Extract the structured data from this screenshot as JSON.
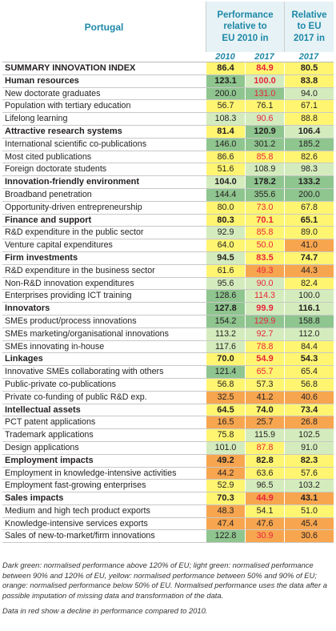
{
  "header": {
    "country": "Portugal",
    "performance": "Performance\nrelative to\nEU 2010 in",
    "relative": "Relative\nto EU\n2017 in"
  },
  "years": [
    "2010",
    "2017",
    "2017"
  ],
  "colors": {
    "dark_green": "#8fc58f",
    "light_green": "#d4ecbd",
    "yellow": "#fff571",
    "orange": "#f7a64f",
    "decline_red": "#e8243c",
    "header_blue": "#1e88a8"
  },
  "rows": [
    {
      "label": "SUMMARY INNOVATION INDEX",
      "bold": true,
      "v": [
        "86.4",
        "84.9",
        "80.5"
      ],
      "c": [
        "y",
        "y",
        "y"
      ],
      "r": [
        false,
        true,
        false
      ]
    },
    {
      "label": "Human resources",
      "bold": true,
      "v": [
        "123.1",
        "100.0",
        "83.8"
      ],
      "c": [
        "dg",
        "lg",
        "y"
      ],
      "r": [
        false,
        true,
        false
      ]
    },
    {
      "label": "New doctorate graduates",
      "bold": false,
      "v": [
        "200.0",
        "131.0",
        "94.0"
      ],
      "c": [
        "dg",
        "dg",
        "lg"
      ],
      "r": [
        false,
        true,
        false
      ]
    },
    {
      "label": "Population with tertiary education",
      "bold": false,
      "v": [
        "56.7",
        "76.1",
        "67.1"
      ],
      "c": [
        "y",
        "y",
        "y"
      ],
      "r": [
        false,
        false,
        false
      ]
    },
    {
      "label": "Lifelong learning",
      "bold": false,
      "v": [
        "108.3",
        "90.6",
        "88.8"
      ],
      "c": [
        "lg",
        "lg",
        "y"
      ],
      "r": [
        false,
        true,
        false
      ]
    },
    {
      "label": "Attractive research systems",
      "bold": true,
      "v": [
        "81.4",
        "120.9",
        "106.4"
      ],
      "c": [
        "y",
        "dg",
        "lg"
      ],
      "r": [
        false,
        false,
        false
      ]
    },
    {
      "label": "International scientific co-publications",
      "bold": false,
      "v": [
        "146.0",
        "301.2",
        "185.2"
      ],
      "c": [
        "dg",
        "dg",
        "dg"
      ],
      "r": [
        false,
        false,
        false
      ]
    },
    {
      "label": "Most cited publications",
      "bold": false,
      "v": [
        "86.6",
        "85.8",
        "82.6"
      ],
      "c": [
        "y",
        "y",
        "y"
      ],
      "r": [
        false,
        true,
        false
      ]
    },
    {
      "label": "Foreign doctorate students",
      "bold": false,
      "v": [
        "51.6",
        "108.9",
        "98.3"
      ],
      "c": [
        "y",
        "lg",
        "lg"
      ],
      "r": [
        false,
        false,
        false
      ]
    },
    {
      "label": "Innovation-friendly environment",
      "bold": true,
      "v": [
        "104.0",
        "178.2",
        "133.2"
      ],
      "c": [
        "lg",
        "dg",
        "dg"
      ],
      "r": [
        false,
        false,
        false
      ]
    },
    {
      "label": "Broadband penetration",
      "bold": false,
      "v": [
        "144.4",
        "355.6",
        "200.0"
      ],
      "c": [
        "dg",
        "dg",
        "dg"
      ],
      "r": [
        false,
        false,
        false
      ]
    },
    {
      "label": "Opportunity-driven entrepreneurship",
      "bold": false,
      "v": [
        "80.0",
        "73.0",
        "67.8"
      ],
      "c": [
        "y",
        "y",
        "y"
      ],
      "r": [
        false,
        true,
        false
      ]
    },
    {
      "label": "Finance and support",
      "bold": true,
      "v": [
        "80.3",
        "70.1",
        "65.1"
      ],
      "c": [
        "y",
        "y",
        "y"
      ],
      "r": [
        false,
        true,
        false
      ]
    },
    {
      "label": "R&D expenditure in the public sector",
      "bold": false,
      "v": [
        "92.9",
        "85.8",
        "89.0"
      ],
      "c": [
        "lg",
        "y",
        "y"
      ],
      "r": [
        false,
        true,
        false
      ]
    },
    {
      "label": "Venture capital expenditures",
      "bold": false,
      "v": [
        "64.0",
        "50.0",
        "41.0"
      ],
      "c": [
        "y",
        "y",
        "o"
      ],
      "r": [
        false,
        true,
        false
      ]
    },
    {
      "label": "Firm investments",
      "bold": true,
      "v": [
        "94.5",
        "83.5",
        "74.7"
      ],
      "c": [
        "lg",
        "y",
        "y"
      ],
      "r": [
        false,
        true,
        false
      ]
    },
    {
      "label": "R&D expenditure in the business sector",
      "bold": false,
      "v": [
        "61.6",
        "49.3",
        "44.3"
      ],
      "c": [
        "y",
        "o",
        "o"
      ],
      "r": [
        false,
        true,
        false
      ]
    },
    {
      "label": "Non-R&D innovation expenditures",
      "bold": false,
      "v": [
        "95.6",
        "90.0",
        "82.4"
      ],
      "c": [
        "lg",
        "lg",
        "y"
      ],
      "r": [
        false,
        true,
        false
      ]
    },
    {
      "label": "Enterprises providing ICT training",
      "bold": false,
      "v": [
        "128.6",
        "114.3",
        "100.0"
      ],
      "c": [
        "dg",
        "lg",
        "lg"
      ],
      "r": [
        false,
        true,
        false
      ]
    },
    {
      "label": "Innovators",
      "bold": true,
      "v": [
        "127.8",
        "99.9",
        "116.1"
      ],
      "c": [
        "dg",
        "lg",
        "lg"
      ],
      "r": [
        false,
        true,
        false
      ]
    },
    {
      "label": "SMEs product/process innovations",
      "bold": false,
      "v": [
        "154.2",
        "129.9",
        "158.8"
      ],
      "c": [
        "dg",
        "dg",
        "dg"
      ],
      "r": [
        false,
        true,
        false
      ]
    },
    {
      "label": "SMEs marketing/organisational innovations",
      "bold": false,
      "v": [
        "113.2",
        "92.7",
        "112.0"
      ],
      "c": [
        "lg",
        "lg",
        "lg"
      ],
      "r": [
        false,
        true,
        false
      ]
    },
    {
      "label": "SMEs innovating in-house",
      "bold": false,
      "v": [
        "117.6",
        "78.8",
        "84.4"
      ],
      "c": [
        "lg",
        "y",
        "y"
      ],
      "r": [
        false,
        true,
        false
      ]
    },
    {
      "label": "Linkages",
      "bold": true,
      "v": [
        "70.0",
        "54.9",
        "54.3"
      ],
      "c": [
        "y",
        "y",
        "y"
      ],
      "r": [
        false,
        true,
        false
      ]
    },
    {
      "label": "Innovative SMEs collaborating with others",
      "bold": false,
      "v": [
        "121.4",
        "65.7",
        "65.4"
      ],
      "c": [
        "dg",
        "y",
        "y"
      ],
      "r": [
        false,
        true,
        false
      ]
    },
    {
      "label": "Public-private co-publications",
      "bold": false,
      "v": [
        "56.8",
        "57.3",
        "56.8"
      ],
      "c": [
        "y",
        "y",
        "y"
      ],
      "r": [
        false,
        false,
        false
      ]
    },
    {
      "label": "Private co-funding of public R&D exp.",
      "bold": false,
      "v": [
        "32.5",
        "41.2",
        "40.6"
      ],
      "c": [
        "o",
        "o",
        "o"
      ],
      "r": [
        false,
        false,
        false
      ]
    },
    {
      "label": "Intellectual assets",
      "bold": true,
      "v": [
        "64.5",
        "74.0",
        "73.4"
      ],
      "c": [
        "y",
        "y",
        "y"
      ],
      "r": [
        false,
        false,
        false
      ]
    },
    {
      "label": "PCT patent applications",
      "bold": false,
      "v": [
        "16.5",
        "25.7",
        "26.8"
      ],
      "c": [
        "o",
        "o",
        "o"
      ],
      "r": [
        false,
        false,
        false
      ]
    },
    {
      "label": "Trademark applications",
      "bold": false,
      "v": [
        "75.8",
        "115.9",
        "102.5"
      ],
      "c": [
        "y",
        "lg",
        "lg"
      ],
      "r": [
        false,
        false,
        false
      ]
    },
    {
      "label": "Design applications",
      "bold": false,
      "v": [
        "101.0",
        "87.8",
        "91.0"
      ],
      "c": [
        "lg",
        "y",
        "lg"
      ],
      "r": [
        false,
        true,
        false
      ]
    },
    {
      "label": "Employment impacts",
      "bold": true,
      "v": [
        "49.2",
        "82.8",
        "82.3"
      ],
      "c": [
        "o",
        "y",
        "y"
      ],
      "r": [
        false,
        false,
        false
      ]
    },
    {
      "label": "Employment in knowledge-intensive activities",
      "bold": false,
      "v": [
        "44.2",
        "63.6",
        "57.6"
      ],
      "c": [
        "o",
        "y",
        "y"
      ],
      "r": [
        false,
        false,
        false
      ]
    },
    {
      "label": "Employment fast-growing enterprises",
      "bold": false,
      "v": [
        "52.9",
        "96.5",
        "103.2"
      ],
      "c": [
        "y",
        "lg",
        "lg"
      ],
      "r": [
        false,
        false,
        false
      ]
    },
    {
      "label": "Sales impacts",
      "bold": true,
      "v": [
        "70.3",
        "44.9",
        "43.1"
      ],
      "c": [
        "y",
        "o",
        "o"
      ],
      "r": [
        false,
        true,
        false
      ]
    },
    {
      "label": "Medium and high tech product exports",
      "bold": false,
      "v": [
        "48.3",
        "54.1",
        "51.0"
      ],
      "c": [
        "o",
        "y",
        "y"
      ],
      "r": [
        false,
        false,
        false
      ]
    },
    {
      "label": "Knowledge-intensive services exports",
      "bold": false,
      "v": [
        "47.4",
        "47.6",
        "45.4"
      ],
      "c": [
        "o",
        "o",
        "o"
      ],
      "r": [
        false,
        false,
        false
      ]
    },
    {
      "label": "Sales of new-to-market/firm innovations",
      "bold": false,
      "v": [
        "122.8",
        "30.9",
        "30.6"
      ],
      "c": [
        "dg",
        "o",
        "o"
      ],
      "r": [
        false,
        true,
        false
      ]
    }
  ],
  "notes": {
    "legend": "Dark green: normalised performance above 120% of EU; light green: normalised performance between 90% and 120% of EU, yellow: normalised performance between 50% and 90% of EU; orange: normalised performance below 50% of EU. Normalised performance uses the data after a possible imputation of missing data and transformation of the data.",
    "red": "Data in red show a decline in performance compared to 2010."
  }
}
